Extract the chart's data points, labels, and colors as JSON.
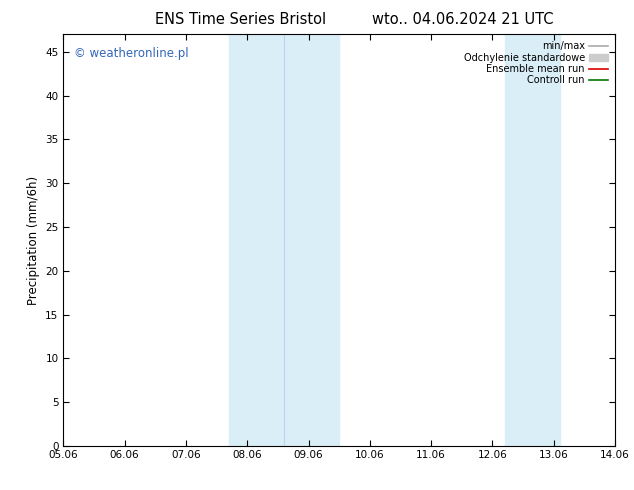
{
  "title_left": "ENS Time Series Bristol",
  "title_right": "wto.. 04.06.2024 21 UTC",
  "ylabel": "Precipitation (mm/6h)",
  "xlim": [
    0,
    10
  ],
  "ylim": [
    0,
    47
  ],
  "yticks": [
    0,
    5,
    10,
    15,
    20,
    25,
    30,
    35,
    40,
    45
  ],
  "xtick_labels": [
    "05.06",
    "06.06",
    "07.06",
    "08.06",
    "09.06",
    "10.06",
    "11.06",
    "12.06",
    "13.06",
    "14.06"
  ],
  "background_color": "#ffffff",
  "plot_bg_color": "#ffffff",
  "shaded_bands": [
    {
      "xmin": 3.0,
      "xmax": 5.0,
      "color": "#daeef8"
    },
    {
      "xmin": 8.0,
      "xmax": 9.0,
      "color": "#daeef8"
    }
  ],
  "inner_lines": [
    {
      "x": 4.0,
      "color": "#b8d8e8",
      "lw": 0.8
    }
  ],
  "legend_items": [
    {
      "label": "min/max",
      "color": "#aaaaaa",
      "lw": 1.2,
      "style": "-"
    },
    {
      "label": "Odchylenie standardowe",
      "color": "#cccccc",
      "lw": 6,
      "style": "-"
    },
    {
      "label": "Ensemble mean run",
      "color": "#dd0000",
      "lw": 1.2,
      "style": "-"
    },
    {
      "label": "Controll run",
      "color": "#007700",
      "lw": 1.2,
      "style": "-"
    }
  ],
  "watermark": "© weatheronline.pl",
  "watermark_color": "#3366bb",
  "watermark_fontsize": 8.5,
  "title_fontsize": 10.5,
  "tick_fontsize": 7.5,
  "ylabel_fontsize": 8.5
}
